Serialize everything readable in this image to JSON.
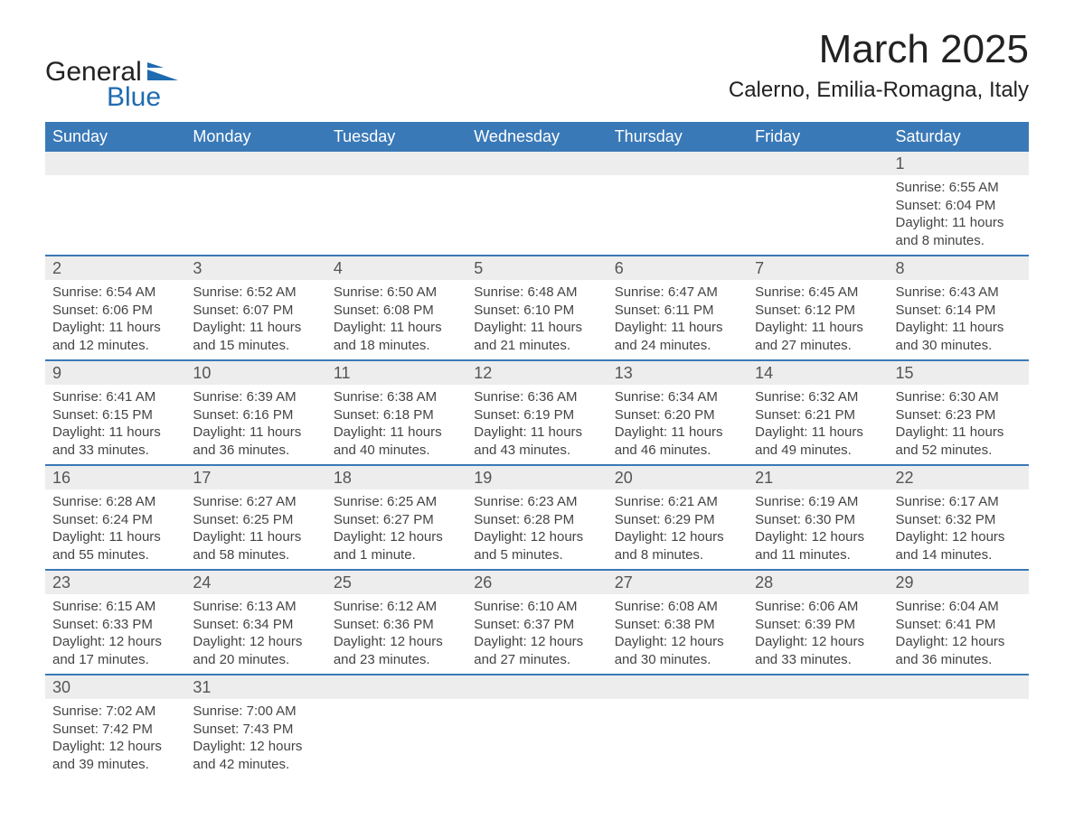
{
  "logo": {
    "word1": "General",
    "word2": "Blue"
  },
  "header": {
    "title": "March 2025",
    "location": "Calerno, Emilia-Romagna, Italy"
  },
  "colors": {
    "header_bg": "#3a79b7",
    "header_text": "#ffffff",
    "daynum_bg": "#ededed",
    "row_border": "#3a79b7",
    "body_text": "#444444",
    "logo_blue": "#1f6bb0"
  },
  "weekdays": [
    "Sunday",
    "Monday",
    "Tuesday",
    "Wednesday",
    "Thursday",
    "Friday",
    "Saturday"
  ],
  "labels": {
    "sunrise": "Sunrise: ",
    "sunset": "Sunset: ",
    "daylight": "Daylight: "
  },
  "first_weekday_index": 6,
  "days": [
    {
      "n": 1,
      "sunrise": "6:55 AM",
      "sunset": "6:04 PM",
      "daylight": "11 hours and 8 minutes."
    },
    {
      "n": 2,
      "sunrise": "6:54 AM",
      "sunset": "6:06 PM",
      "daylight": "11 hours and 12 minutes."
    },
    {
      "n": 3,
      "sunrise": "6:52 AM",
      "sunset": "6:07 PM",
      "daylight": "11 hours and 15 minutes."
    },
    {
      "n": 4,
      "sunrise": "6:50 AM",
      "sunset": "6:08 PM",
      "daylight": "11 hours and 18 minutes."
    },
    {
      "n": 5,
      "sunrise": "6:48 AM",
      "sunset": "6:10 PM",
      "daylight": "11 hours and 21 minutes."
    },
    {
      "n": 6,
      "sunrise": "6:47 AM",
      "sunset": "6:11 PM",
      "daylight": "11 hours and 24 minutes."
    },
    {
      "n": 7,
      "sunrise": "6:45 AM",
      "sunset": "6:12 PM",
      "daylight": "11 hours and 27 minutes."
    },
    {
      "n": 8,
      "sunrise": "6:43 AM",
      "sunset": "6:14 PM",
      "daylight": "11 hours and 30 minutes."
    },
    {
      "n": 9,
      "sunrise": "6:41 AM",
      "sunset": "6:15 PM",
      "daylight": "11 hours and 33 minutes."
    },
    {
      "n": 10,
      "sunrise": "6:39 AM",
      "sunset": "6:16 PM",
      "daylight": "11 hours and 36 minutes."
    },
    {
      "n": 11,
      "sunrise": "6:38 AM",
      "sunset": "6:18 PM",
      "daylight": "11 hours and 40 minutes."
    },
    {
      "n": 12,
      "sunrise": "6:36 AM",
      "sunset": "6:19 PM",
      "daylight": "11 hours and 43 minutes."
    },
    {
      "n": 13,
      "sunrise": "6:34 AM",
      "sunset": "6:20 PM",
      "daylight": "11 hours and 46 minutes."
    },
    {
      "n": 14,
      "sunrise": "6:32 AM",
      "sunset": "6:21 PM",
      "daylight": "11 hours and 49 minutes."
    },
    {
      "n": 15,
      "sunrise": "6:30 AM",
      "sunset": "6:23 PM",
      "daylight": "11 hours and 52 minutes."
    },
    {
      "n": 16,
      "sunrise": "6:28 AM",
      "sunset": "6:24 PM",
      "daylight": "11 hours and 55 minutes."
    },
    {
      "n": 17,
      "sunrise": "6:27 AM",
      "sunset": "6:25 PM",
      "daylight": "11 hours and 58 minutes."
    },
    {
      "n": 18,
      "sunrise": "6:25 AM",
      "sunset": "6:27 PM",
      "daylight": "12 hours and 1 minute."
    },
    {
      "n": 19,
      "sunrise": "6:23 AM",
      "sunset": "6:28 PM",
      "daylight": "12 hours and 5 minutes."
    },
    {
      "n": 20,
      "sunrise": "6:21 AM",
      "sunset": "6:29 PM",
      "daylight": "12 hours and 8 minutes."
    },
    {
      "n": 21,
      "sunrise": "6:19 AM",
      "sunset": "6:30 PM",
      "daylight": "12 hours and 11 minutes."
    },
    {
      "n": 22,
      "sunrise": "6:17 AM",
      "sunset": "6:32 PM",
      "daylight": "12 hours and 14 minutes."
    },
    {
      "n": 23,
      "sunrise": "6:15 AM",
      "sunset": "6:33 PM",
      "daylight": "12 hours and 17 minutes."
    },
    {
      "n": 24,
      "sunrise": "6:13 AM",
      "sunset": "6:34 PM",
      "daylight": "12 hours and 20 minutes."
    },
    {
      "n": 25,
      "sunrise": "6:12 AM",
      "sunset": "6:36 PM",
      "daylight": "12 hours and 23 minutes."
    },
    {
      "n": 26,
      "sunrise": "6:10 AM",
      "sunset": "6:37 PM",
      "daylight": "12 hours and 27 minutes."
    },
    {
      "n": 27,
      "sunrise": "6:08 AM",
      "sunset": "6:38 PM",
      "daylight": "12 hours and 30 minutes."
    },
    {
      "n": 28,
      "sunrise": "6:06 AM",
      "sunset": "6:39 PM",
      "daylight": "12 hours and 33 minutes."
    },
    {
      "n": 29,
      "sunrise": "6:04 AM",
      "sunset": "6:41 PM",
      "daylight": "12 hours and 36 minutes."
    },
    {
      "n": 30,
      "sunrise": "7:02 AM",
      "sunset": "7:42 PM",
      "daylight": "12 hours and 39 minutes."
    },
    {
      "n": 31,
      "sunrise": "7:00 AM",
      "sunset": "7:43 PM",
      "daylight": "12 hours and 42 minutes."
    }
  ]
}
